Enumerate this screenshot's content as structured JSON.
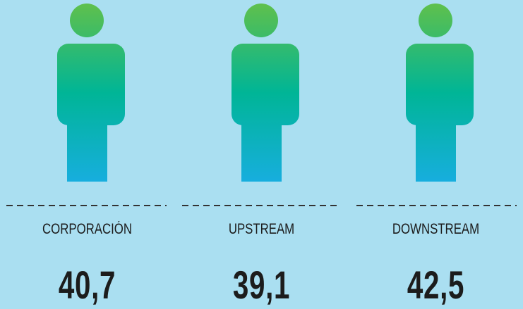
{
  "items": [
    {
      "label": "CORPORACIÓN",
      "value": "40,7"
    },
    {
      "label": "UPSTREAM",
      "value": "39,1"
    },
    {
      "label": "DOWNSTREAM",
      "value": "42,5"
    }
  ]
}
